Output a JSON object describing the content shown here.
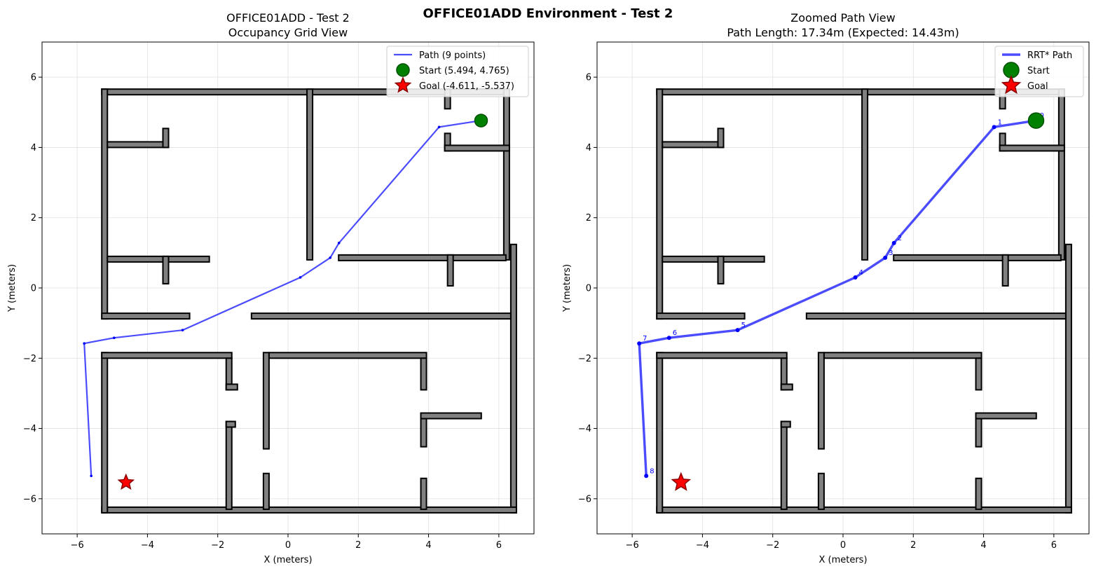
{
  "figure": {
    "title": "OFFICE01ADD Environment - Test 2"
  },
  "colors": {
    "wall_fill": "#808080",
    "wall_edge": "#000000",
    "path": "#0000ff",
    "start": "#008000",
    "goal": "#ff0000",
    "grid": "#e0e0e0"
  },
  "chart_data": [
    {
      "type": "line",
      "title_line1": "OFFICE01ADD - Test 2",
      "title_line2": "Occupancy Grid View",
      "xlabel": "X (meters)",
      "ylabel": "Y (meters)",
      "xlim": [
        -7,
        7
      ],
      "ylim": [
        -7,
        7
      ],
      "xticks": [
        "−6",
        "−4",
        "−2",
        "0",
        "2",
        "4",
        "6"
      ],
      "yticks": [
        "−6",
        "−4",
        "−2",
        "0",
        "2",
        "4",
        "6"
      ],
      "grid": true,
      "legend_position": "top-right",
      "legend": [
        "Path (9 points)",
        "Start (5.494, 4.765)",
        "Goal (-4.611, -5.537)"
      ],
      "path": [
        [
          5.494,
          4.765
        ],
        [
          4.3,
          4.58
        ],
        [
          1.45,
          1.28
        ],
        [
          1.2,
          0.86
        ],
        [
          0.35,
          0.3
        ],
        [
          -3.0,
          -1.2
        ],
        [
          -4.95,
          -1.42
        ],
        [
          -5.8,
          -1.58
        ],
        [
          -5.6,
          -5.35
        ]
      ],
      "start": [
        5.494,
        4.765
      ],
      "goal": [
        -4.611,
        -5.537
      ],
      "show_waypoint_labels": false
    },
    {
      "type": "line",
      "title_line1": "Zoomed Path View",
      "title_line2": "Path Length: 17.34m (Expected: 14.43m)",
      "xlabel": "X (meters)",
      "ylabel": "Y (meters)",
      "xlim": [
        -7,
        7
      ],
      "ylim": [
        -7,
        7
      ],
      "xticks": [
        "−6",
        "−4",
        "−2",
        "0",
        "2",
        "4",
        "6"
      ],
      "yticks": [
        "−6",
        "−4",
        "−2",
        "0",
        "2",
        "4",
        "6"
      ],
      "grid": true,
      "legend_position": "top-right",
      "legend": [
        "RRT* Path",
        "Start",
        "Goal"
      ],
      "path": [
        [
          5.494,
          4.765
        ],
        [
          4.3,
          4.58
        ],
        [
          1.45,
          1.28
        ],
        [
          1.2,
          0.86
        ],
        [
          0.35,
          0.3
        ],
        [
          -3.0,
          -1.2
        ],
        [
          -4.95,
          -1.42
        ],
        [
          -5.8,
          -1.58
        ],
        [
          -5.6,
          -5.35
        ]
      ],
      "waypoint_labels": [
        "0",
        "1",
        "2",
        "3",
        "4",
        "5",
        "6",
        "7",
        "8"
      ],
      "start": [
        5.494,
        4.765
      ],
      "goal": [
        -4.611,
        -5.537
      ],
      "show_waypoint_labels": true
    }
  ],
  "walls": [
    [
      -5.3,
      5.5,
      6.3,
      5.66
    ],
    [
      -5.3,
      -0.88,
      -5.14,
      5.66
    ],
    [
      6.14,
      0.8,
      6.3,
      5.66
    ],
    [
      6.34,
      -6.4,
      6.5,
      1.24
    ],
    [
      -5.3,
      -6.4,
      6.5,
      -6.24
    ],
    [
      -5.3,
      -6.4,
      -5.14,
      -1.84
    ],
    [
      -5.14,
      4.0,
      -3.4,
      4.16
    ],
    [
      -3.56,
      4.0,
      -3.4,
      4.54
    ],
    [
      -5.14,
      0.74,
      -2.24,
      0.9
    ],
    [
      -3.56,
      0.12,
      -3.4,
      0.9
    ],
    [
      -5.3,
      -0.88,
      -2.8,
      -0.72
    ],
    [
      0.54,
      0.8,
      0.7,
      5.66
    ],
    [
      4.46,
      5.1,
      4.62,
      5.66
    ],
    [
      4.46,
      3.9,
      4.62,
      4.4
    ],
    [
      4.46,
      3.9,
      6.3,
      4.06
    ],
    [
      1.44,
      0.78,
      6.2,
      0.94
    ],
    [
      4.54,
      0.06,
      4.7,
      0.94
    ],
    [
      -1.04,
      -0.88,
      6.34,
      -0.72
    ],
    [
      -5.3,
      -2.0,
      -1.6,
      -1.84
    ],
    [
      -1.76,
      -2.9,
      -1.6,
      -2.0
    ],
    [
      -1.76,
      -2.9,
      -1.44,
      -2.74
    ],
    [
      -0.7,
      -4.58,
      -0.54,
      -1.84
    ],
    [
      -0.54,
      -2.0,
      3.94,
      -1.84
    ],
    [
      3.78,
      -2.9,
      3.94,
      -2.0
    ],
    [
      3.78,
      -4.52,
      3.94,
      -3.56
    ],
    [
      3.78,
      -3.72,
      5.5,
      -3.56
    ],
    [
      -1.76,
      -6.3,
      -1.6,
      -3.8
    ],
    [
      -1.76,
      -3.96,
      -1.5,
      -3.8
    ],
    [
      -0.7,
      -6.3,
      -0.54,
      -5.28
    ],
    [
      3.78,
      -6.3,
      3.94,
      -5.42
    ]
  ]
}
